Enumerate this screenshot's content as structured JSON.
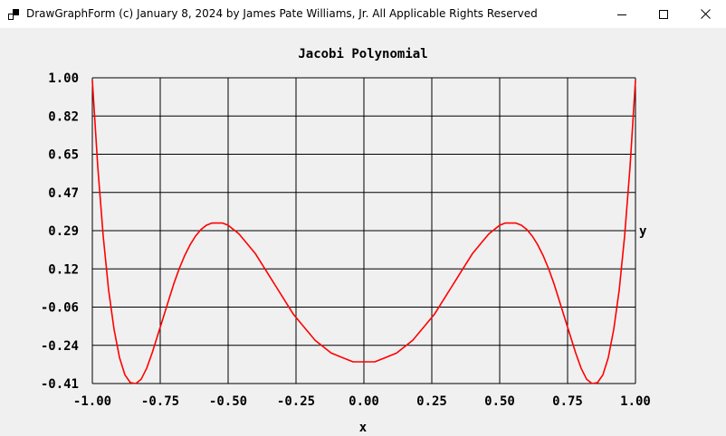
{
  "window": {
    "title": "DrawGraphForm (c) January 8, 2024 by James Pate Williams, Jr. All Applicable Rights Reserved",
    "icons": {
      "app": "app-window-icon",
      "minimize": "minimize-icon",
      "maximize": "maximize-icon",
      "close": "close-icon"
    }
  },
  "chart_data": {
    "type": "line",
    "title": "Jacobi Polynomial",
    "xlabel": "x",
    "ylabel": "y",
    "xlim": [
      -1.0,
      1.0
    ],
    "ylim": [
      -0.41,
      1.0
    ],
    "xticks": [
      "-1.00",
      "-0.75",
      "-0.50",
      "-0.25",
      "0.00",
      "0.25",
      "0.50",
      "0.75",
      "1.00"
    ],
    "yticks": [
      "1.00",
      "0.82",
      "0.65",
      "0.47",
      "0.29",
      "0.12",
      "-0.06",
      "-0.24",
      "-0.41"
    ],
    "grid": true,
    "line_color": "#ff0000",
    "series": [
      {
        "x": [
          -1.0,
          -0.98,
          -0.96,
          -0.94,
          -0.92,
          -0.9,
          -0.88,
          -0.86,
          -0.84,
          -0.82,
          -0.8,
          -0.78,
          -0.76,
          -0.74,
          -0.72,
          -0.7,
          -0.68,
          -0.66,
          -0.64,
          -0.62,
          -0.6,
          -0.58,
          -0.56,
          -0.54,
          -0.52,
          -0.5,
          -0.48,
          -0.46,
          -0.44,
          -0.42,
          -0.4,
          -0.38,
          -0.36,
          -0.34,
          -0.32,
          -0.3,
          -0.28,
          -0.26,
          -0.24,
          -0.22,
          -0.2,
          -0.18,
          -0.16,
          -0.14,
          -0.12,
          -0.1,
          -0.08,
          -0.06,
          -0.04,
          -0.02,
          0.0,
          0.02,
          0.04,
          0.06,
          0.08,
          0.1,
          0.12,
          0.14,
          0.16,
          0.18,
          0.2,
          0.22,
          0.24,
          0.26,
          0.28,
          0.3,
          0.32,
          0.34,
          0.36,
          0.38,
          0.4,
          0.42,
          0.44,
          0.46,
          0.48,
          0.5,
          0.52,
          0.54,
          0.56,
          0.58,
          0.6,
          0.62,
          0.64,
          0.66,
          0.68,
          0.7,
          0.72,
          0.74,
          0.76,
          0.78,
          0.8,
          0.82,
          0.84,
          0.86,
          0.88,
          0.9,
          0.92,
          0.94,
          0.96,
          0.98,
          1.0
        ],
        "y": [
          0.99,
          0.59,
          0.27,
          0.02,
          -0.16,
          -0.29,
          -0.37,
          -0.406,
          -0.41,
          -0.39,
          -0.34,
          -0.27,
          -0.19,
          -0.11,
          -0.03,
          0.05,
          0.12,
          0.18,
          0.23,
          0.27,
          0.3,
          0.32,
          0.33,
          0.33,
          0.33,
          0.32,
          0.3,
          0.28,
          0.25,
          0.22,
          0.19,
          0.15,
          0.11,
          0.07,
          0.03,
          -0.01,
          -0.05,
          -0.09,
          -0.12,
          -0.15,
          -0.18,
          -0.21,
          -0.23,
          -0.25,
          -0.27,
          -0.28,
          -0.29,
          -0.3,
          -0.31,
          -0.31,
          -0.31,
          -0.31,
          -0.31,
          -0.3,
          -0.29,
          -0.28,
          -0.27,
          -0.25,
          -0.23,
          -0.21,
          -0.18,
          -0.15,
          -0.12,
          -0.09,
          -0.05,
          -0.01,
          0.03,
          0.07,
          0.11,
          0.15,
          0.19,
          0.22,
          0.25,
          0.28,
          0.3,
          0.32,
          0.33,
          0.33,
          0.33,
          0.32,
          0.3,
          0.27,
          0.23,
          0.18,
          0.12,
          0.05,
          -0.03,
          -0.11,
          -0.19,
          -0.27,
          -0.34,
          -0.39,
          -0.41,
          -0.406,
          -0.37,
          -0.29,
          -0.16,
          0.02,
          0.27,
          0.59,
          0.99
        ]
      }
    ]
  }
}
